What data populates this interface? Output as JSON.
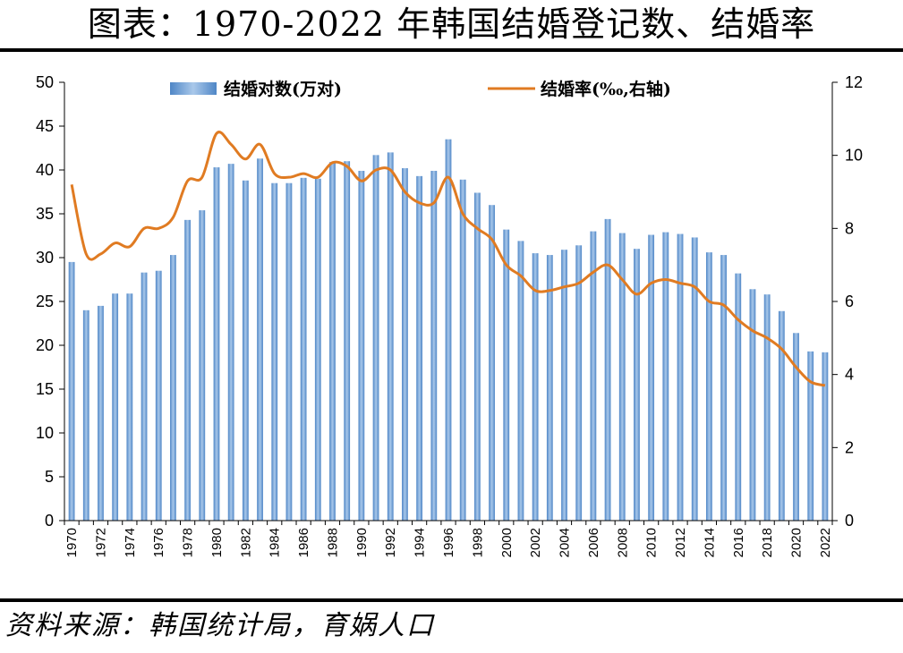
{
  "title": "图表：1970-2022 年韩国结婚登记数、结婚率",
  "source": "资料来源：韩国统计局，育娲人口",
  "colors": {
    "bar": "#4f86c6",
    "bar_light": "#a9c8ea",
    "line": "#e07b22",
    "axis": "#000000"
  },
  "chart_data": {
    "type": "bar+line",
    "title": "1970-2022 年韩国结婚登记数、结婚率",
    "categories": [
      1970,
      1971,
      1972,
      1973,
      1974,
      1975,
      1976,
      1977,
      1978,
      1979,
      1980,
      1981,
      1982,
      1983,
      1984,
      1985,
      1986,
      1987,
      1988,
      1989,
      1990,
      1991,
      1992,
      1993,
      1994,
      1995,
      1996,
      1997,
      1998,
      1999,
      2000,
      2001,
      2002,
      2003,
      2004,
      2005,
      2006,
      2007,
      2008,
      2009,
      2010,
      2011,
      2012,
      2013,
      2014,
      2015,
      2016,
      2017,
      2018,
      2019,
      2020,
      2021,
      2022
    ],
    "x_tick_labels": [
      "1970",
      "1972",
      "1974",
      "1976",
      "1978",
      "1980",
      "1982",
      "1984",
      "1986",
      "1988",
      "1990",
      "1992",
      "1994",
      "1996",
      "1998",
      "2000",
      "2002",
      "2004",
      "2006",
      "2008",
      "2010",
      "2012",
      "2014",
      "2016",
      "2018",
      "2020",
      "2022"
    ],
    "series": [
      {
        "name": "结婚对数(万对)",
        "type": "bar",
        "axis": "left",
        "values": [
          29.5,
          24.0,
          24.5,
          25.9,
          25.9,
          28.3,
          28.5,
          30.3,
          34.3,
          35.4,
          40.3,
          40.7,
          38.8,
          41.3,
          38.5,
          38.5,
          39.1,
          39.0,
          40.9,
          41.0,
          39.9,
          41.7,
          42.0,
          40.2,
          39.3,
          39.9,
          43.5,
          38.9,
          37.4,
          36.0,
          33.2,
          31.9,
          30.5,
          30.3,
          30.9,
          31.4,
          33.0,
          34.4,
          32.8,
          31.0,
          32.6,
          32.9,
          32.7,
          32.3,
          30.6,
          30.3,
          28.2,
          26.4,
          25.8,
          23.9,
          21.4,
          19.3,
          19.2
        ]
      },
      {
        "name": "结婚率(‰,右轴)",
        "type": "line",
        "axis": "right",
        "values": [
          9.2,
          7.3,
          7.3,
          7.6,
          7.5,
          8.0,
          8.0,
          8.3,
          9.3,
          9.4,
          10.6,
          10.3,
          9.9,
          10.3,
          9.5,
          9.4,
          9.5,
          9.4,
          9.8,
          9.7,
          9.3,
          9.6,
          9.6,
          9.0,
          8.7,
          8.7,
          9.4,
          8.4,
          8.0,
          7.7,
          7.0,
          6.7,
          6.3,
          6.3,
          6.4,
          6.5,
          6.8,
          7.0,
          6.6,
          6.2,
          6.5,
          6.6,
          6.5,
          6.4,
          6.0,
          5.9,
          5.5,
          5.2,
          5.0,
          4.7,
          4.2,
          3.8,
          3.7
        ]
      }
    ],
    "y_left": {
      "label": "",
      "lim": [
        0,
        50
      ],
      "ticks": [
        0,
        5,
        10,
        15,
        20,
        25,
        30,
        35,
        40,
        45,
        50
      ]
    },
    "y_right": {
      "label": "",
      "lim": [
        0,
        12
      ],
      "ticks": [
        0,
        2,
        4,
        6,
        8,
        10,
        12
      ]
    },
    "legend": {
      "placement": "top-center"
    },
    "grid": false
  }
}
